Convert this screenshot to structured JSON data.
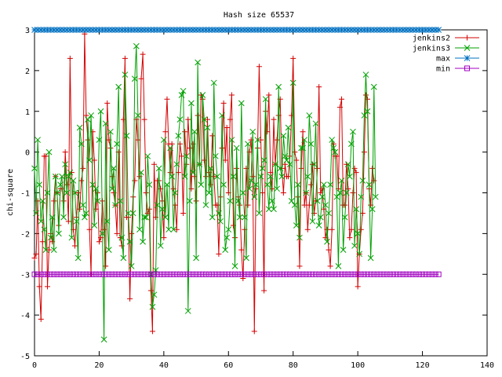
{
  "chart_data": {
    "type": "line",
    "title": "Hash size 65537",
    "xlabel": "",
    "ylabel": "chi-square",
    "xlim": [
      0,
      140
    ],
    "ylim": [
      -5,
      3
    ],
    "xticks": [
      0,
      20,
      40,
      60,
      80,
      100,
      120,
      140
    ],
    "yticks": [
      -5,
      -4,
      -3,
      -2,
      -1,
      0,
      1,
      2,
      3
    ],
    "grid": false,
    "legend_position": "top-right",
    "series": [
      {
        "name": "jenkins2",
        "color": "#d40000",
        "marker": "plus",
        "y": [
          -2.6,
          -2.5,
          -1.2,
          -3.3,
          -4.1,
          -2.2,
          -0.1,
          -0.1,
          -3.3,
          -2.4,
          -2.0,
          -2.2,
          -1.2,
          -0.6,
          -1.0,
          -1.8,
          -0.9,
          -0.9,
          -1.2,
          0.0,
          -0.8,
          -1.7,
          2.3,
          -0.5,
          -1.9,
          -2.3,
          -1.6,
          -1.0,
          -1.4,
          -0.7,
          -0.4,
          2.9,
          0.9,
          0.3,
          -1.9,
          -3.0,
          0.5,
          -0.2,
          -1.4,
          -1.0,
          -2.2,
          -2.1,
          -1.2,
          -1.9,
          -2.8,
          1.2,
          0.3,
          0.1,
          -0.6,
          -1.0,
          -1.3,
          -2.0,
          0.0,
          -2.1,
          -2.3,
          0.8,
          2.3,
          -1.6,
          -1.6,
          -3.6,
          -2.0,
          -1.1,
          -0.7,
          0.8,
          0.3,
          -0.6,
          1.8,
          2.4,
          0.8,
          -1.0,
          -1.5,
          -1.4,
          -3.4,
          -4.4,
          -0.3,
          -1.6,
          -0.7,
          -0.7,
          -0.9,
          -1.2,
          -2.1,
          0.5,
          1.3,
          0.2,
          -0.5,
          0.2,
          -0.9,
          -1.3,
          -1.9,
          -0.5,
          0.2,
          -0.1,
          -1.5,
          0.5,
          -0.3,
          0.8,
          0.1,
          -0.9,
          0.2,
          -0.6,
          -1.2,
          0.9,
          -0.3,
          1.4,
          1.3,
          -0.2,
          -0.6,
          0.8,
          -0.5,
          -0.8,
          0.4,
          -0.6,
          -1.3,
          -1.3,
          -2.5,
          -1.1,
          0.1,
          1.2,
          -0.2,
          0.6,
          -1.0,
          0.8,
          1.4,
          -1.8,
          -2.1,
          -0.4,
          -1.1,
          -1.3,
          -2.4,
          -3.1,
          -1.9,
          -0.4,
          -1.3,
          0.0,
          0.3,
          -0.6,
          -4.4,
          -0.9,
          0.1,
          2.1,
          0.3,
          -1.0,
          -3.4,
          1.0,
          0.5,
          1.4,
          -0.5,
          -0.9,
          0.8,
          -0.3,
          0.3,
          0.9,
          1.3,
          -0.4,
          -1.0,
          -0.3,
          -0.6,
          -0.6,
          -0.1,
          0.9,
          2.3,
          0.0,
          -0.2,
          -1.1,
          -2.8,
          -0.4,
          0.5,
          -1.3,
          -1.0,
          -1.9,
          -1.3,
          -0.8,
          -0.3,
          -1.5,
          -1.2,
          -0.4,
          1.6,
          -1.0,
          -0.9,
          -1.4,
          -2.1,
          -1.9,
          -2.4,
          -2.8,
          -1.9,
          0.2,
          -0.1,
          -0.1,
          -0.9,
          1.1,
          1.3,
          -1.3,
          -1.3,
          -0.3,
          -0.9,
          -2.1,
          -1.9,
          -1.0,
          -0.4,
          -0.5,
          -3.3,
          -2.5,
          -1.9,
          -1.5,
          0.0,
          1.4,
          1.3,
          -0.9,
          -1.3,
          -0.4,
          -0.7
        ],
        "x_start": 0,
        "x_step": 0.5
      },
      {
        "name": "jenkins3",
        "color": "#00a000",
        "marker": "x",
        "y": [
          -0.4,
          -1.5,
          0.3,
          -0.8,
          -1.7,
          -1.2,
          -1.9,
          -2.4,
          -1.0,
          0.0,
          -2.1,
          -1.6,
          -2.4,
          -0.6,
          -1.0,
          -2.0,
          -0.8,
          -0.6,
          -1.6,
          -0.3,
          -1.0,
          -0.6,
          -0.5,
          -2.1,
          -0.7,
          -1.0,
          -1.7,
          -2.6,
          0.6,
          0.2,
          -1.3,
          -1.6,
          -1.5,
          0.8,
          -0.2,
          0.9,
          -0.8,
          -1.8,
          -0.9,
          -1.2,
          0.3,
          1.0,
          -2.0,
          -4.6,
          0.7,
          -1.7,
          -2.4,
          0.5,
          -0.9,
          -0.4,
          -1.3,
          0.2,
          1.6,
          -1.2,
          -2.1,
          -2.6,
          1.9,
          0.4,
          -1.5,
          -2.2,
          -2.8,
          -1.5,
          1.8,
          2.6,
          0.9,
          -1.9,
          -0.5,
          -2.2,
          -1.6,
          -1.6,
          -0.1,
          -0.8,
          -3.0,
          -3.8,
          -3.5,
          -2.9,
          -1.3,
          -0.4,
          -2.3,
          -1.4,
          0.3,
          -1.6,
          -0.8,
          -1.9,
          0.1,
          -0.6,
          -1.9,
          -1.0,
          -0.3,
          0.4,
          0.8,
          1.4,
          1.5,
          -0.6,
          -0.1,
          -3.9,
          -1.2,
          1.2,
          -0.5,
          0.5,
          -2.6,
          2.2,
          -0.3,
          -0.8,
          1.4,
          0.8,
          -1.3,
          0.6,
          -1.0,
          -0.4,
          -1.6,
          1.7,
          -0.1,
          -0.6,
          -1.5,
          -1.7,
          0.9,
          -0.8,
          -2.4,
          -2.1,
          -1.9,
          -1.2,
          0.3,
          -0.6,
          -2.8,
          0.1,
          -1.2,
          -1.6,
          1.2,
          -1.0,
          -1.6,
          -2.6,
          0.2,
          -0.9,
          -0.7,
          0.5,
          -1.1,
          -0.8,
          0.3,
          -1.5,
          -0.6,
          -0.4,
          -0.2,
          1.3,
          -0.8,
          -1.4,
          -0.6,
          -1.2,
          -1.4,
          -0.3,
          -0.9,
          1.6,
          -0.4,
          -0.6,
          0.4,
          -0.1,
          -0.2,
          0.6,
          -0.3,
          -1.2,
          1.7,
          -1.3,
          -1.8,
          -0.8,
          -2.1,
          0.1,
          0.1,
          0.3,
          -1.0,
          -0.6,
          0.9,
          0.2,
          -1.7,
          -0.3,
          0.7,
          -1.2,
          -1.8,
          -1.6,
          -1.1,
          -0.8,
          -1.3,
          -2.2,
          -1.5,
          -0.8,
          0.3,
          0.1,
          0.0,
          -1.1,
          -2.8,
          -1.0,
          -0.7,
          -2.4,
          -1.6,
          -1.0,
          -0.3,
          -0.6,
          0.2,
          0.5,
          -2.3,
          -1.4,
          -2.0,
          -2.5,
          -1.1,
          -0.7,
          0.9,
          1.9,
          1.0,
          -0.8,
          -2.6,
          -1.4,
          1.6,
          -1.1
        ],
        "x_start": 0,
        "x_step": 0.5
      },
      {
        "name": "max",
        "color": "#0070c0",
        "marker": "star",
        "y_const": 3,
        "x_range": [
          0,
          125
        ]
      },
      {
        "name": "min",
        "color": "#a000c0",
        "marker": "square",
        "y_const": -3,
        "x_range": [
          0,
          125
        ]
      }
    ]
  }
}
